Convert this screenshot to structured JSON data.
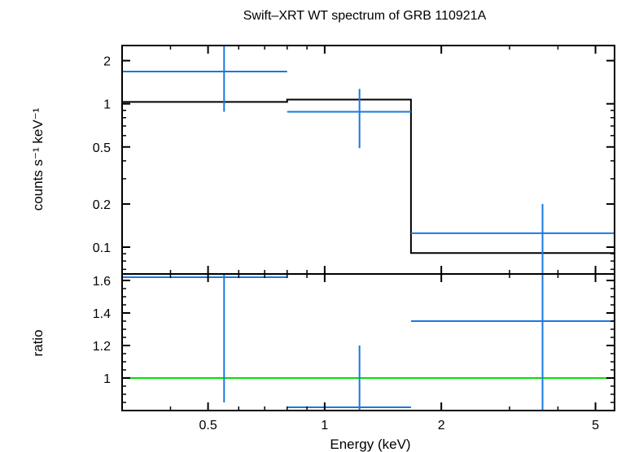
{
  "chart_data": {
    "title": "Swift–XRT WT spectrum of GRB 110921A",
    "xlabel": "Energy (keV)",
    "xscale": "log",
    "xlim": [
      0.3,
      5.6
    ],
    "x_ticks": [
      {
        "value": 0.5,
        "label": "0.5"
      },
      {
        "value": 1,
        "label": "1"
      },
      {
        "value": 2,
        "label": "2"
      },
      {
        "value": 5,
        "label": "5"
      }
    ],
    "colors": {
      "data": "#1a78e0",
      "model": "#000000",
      "unity": "#00e000",
      "frame": "#000000"
    },
    "panels": [
      {
        "id": "spectrum",
        "type": "scatter",
        "ylabel": "counts s⁻¹ keV⁻¹",
        "yscale": "log",
        "ylim": [
          0.065,
          2.55
        ],
        "y_ticks": [
          {
            "value": 0.1,
            "label": "0.1"
          },
          {
            "value": 0.2,
            "label": "0.2"
          },
          {
            "value": 0.5,
            "label": "0.5"
          },
          {
            "value": 1,
            "label": "1"
          },
          {
            "value": 2,
            "label": "2"
          }
        ],
        "series": [
          {
            "kind": "data",
            "points": [
              {
                "x": 0.55,
                "xlo": 0.3,
                "xhi": 0.8,
                "y": 1.68,
                "ylo": 0.88,
                "yhi": 2.55
              },
              {
                "x": 1.23,
                "xlo": 0.8,
                "xhi": 1.67,
                "y": 0.88,
                "ylo": 0.49,
                "yhi": 1.27
              },
              {
                "x": 3.65,
                "xlo": 1.67,
                "xhi": 5.6,
                "y": 0.125,
                "ylo": 0.065,
                "yhi": 0.2
              }
            ]
          },
          {
            "kind": "model",
            "steps": [
              {
                "xlo": 0.3,
                "xhi": 0.8,
                "y": 1.03
              },
              {
                "xlo": 0.8,
                "xhi": 1.67,
                "y": 1.07
              },
              {
                "xlo": 1.67,
                "xhi": 5.6,
                "y": 0.091
              }
            ]
          }
        ]
      },
      {
        "id": "ratio",
        "type": "scatter",
        "ylabel": "ratio",
        "yscale": "linear",
        "ylim": [
          0.8,
          1.64
        ],
        "y_ticks": [
          {
            "value": 1,
            "label": "1"
          },
          {
            "value": 1.2,
            "label": "1.2"
          },
          {
            "value": 1.4,
            "label": "1.4"
          },
          {
            "value": 1.6,
            "label": "1.6"
          }
        ],
        "series": [
          {
            "kind": "data",
            "points": [
              {
                "x": 0.55,
                "xlo": 0.3,
                "xhi": 0.8,
                "y": 1.62,
                "ylo": 0.85,
                "yhi": 1.64
              },
              {
                "x": 1.23,
                "xlo": 0.8,
                "xhi": 1.67,
                "y": 0.82,
                "ylo": 0.8,
                "yhi": 1.2
              },
              {
                "x": 3.65,
                "xlo": 1.67,
                "xhi": 5.6,
                "y": 1.35,
                "ylo": 0.8,
                "yhi": 1.64
              }
            ]
          },
          {
            "kind": "unity",
            "y": 1
          }
        ]
      }
    ]
  }
}
